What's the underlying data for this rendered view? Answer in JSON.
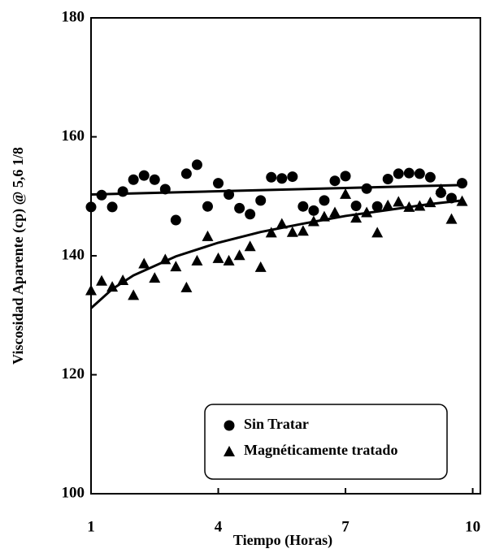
{
  "chart_data": {
    "type": "scatter",
    "xlabel": "Tiempo (Horas)",
    "ylabel": "Viscosidad Aparente (cp) @ 5,6 1/8",
    "x": [
      1,
      1.25,
      1.5,
      1.75,
      2,
      2.25,
      2.5,
      2.75,
      3,
      3.25,
      3.5,
      3.75,
      4,
      4.25,
      4.5,
      4.75,
      5,
      5.25,
      5.5,
      5.75,
      6,
      6.25,
      6.5,
      6.75,
      7,
      7.25,
      7.5,
      7.75,
      8,
      8.25,
      8.5,
      8.75,
      9,
      9.25,
      9.5,
      9.75
    ],
    "series": [
      {
        "name": "Sin Tratar",
        "color": "#000000",
        "marker": "circle",
        "values": [
          148.2,
          150.2,
          148.2,
          150.8,
          152.8,
          153.5,
          152.8,
          151.2,
          146,
          153.8,
          155.3,
          148.3,
          152.2,
          150.3,
          148,
          147,
          149.3,
          153.2,
          153,
          153.3,
          148.3,
          147.6,
          149.3,
          152.6,
          153.4,
          148.4,
          151.3,
          148.3,
          152.9,
          153.8,
          153.9,
          153.8,
          153.2,
          150.6,
          149.7,
          152.2
        ]
      },
      {
        "name": "Magnéticamente tratado",
        "color": "#000000",
        "marker": "triangle",
        "values": [
          134.2,
          135.8,
          134.8,
          135.9,
          133.4,
          138.7,
          136.3,
          139.4,
          138.2,
          134.7,
          139.2,
          143.3,
          139.6,
          139.2,
          140.1,
          141.6,
          138.1,
          143.9,
          145.4,
          144,
          144.2,
          145.8,
          146.6,
          147.3,
          150.4,
          146.4,
          147.3,
          143.9,
          148.5,
          149.1,
          148.2,
          148.4,
          149,
          151.2,
          146.2,
          149.2
        ]
      }
    ],
    "trendlines": [
      {
        "x": [
          1,
          9.75
        ],
        "values": [
          150.3,
          151.9
        ]
      },
      {
        "x": [
          1,
          1.5,
          2,
          3,
          4,
          5,
          6,
          7,
          8,
          9,
          9.75
        ],
        "values": [
          131.2,
          134.4,
          136.7,
          139.9,
          142.2,
          144,
          145.4,
          146.7,
          147.7,
          148.7,
          149.3
        ]
      }
    ],
    "xlim": [
      1,
      10.2
    ],
    "xticks": [
      1,
      4,
      7,
      10
    ],
    "ylim": [
      100,
      180
    ],
    "yticks": [
      100,
      120,
      140,
      160,
      180
    ],
    "legend": "lower right"
  }
}
